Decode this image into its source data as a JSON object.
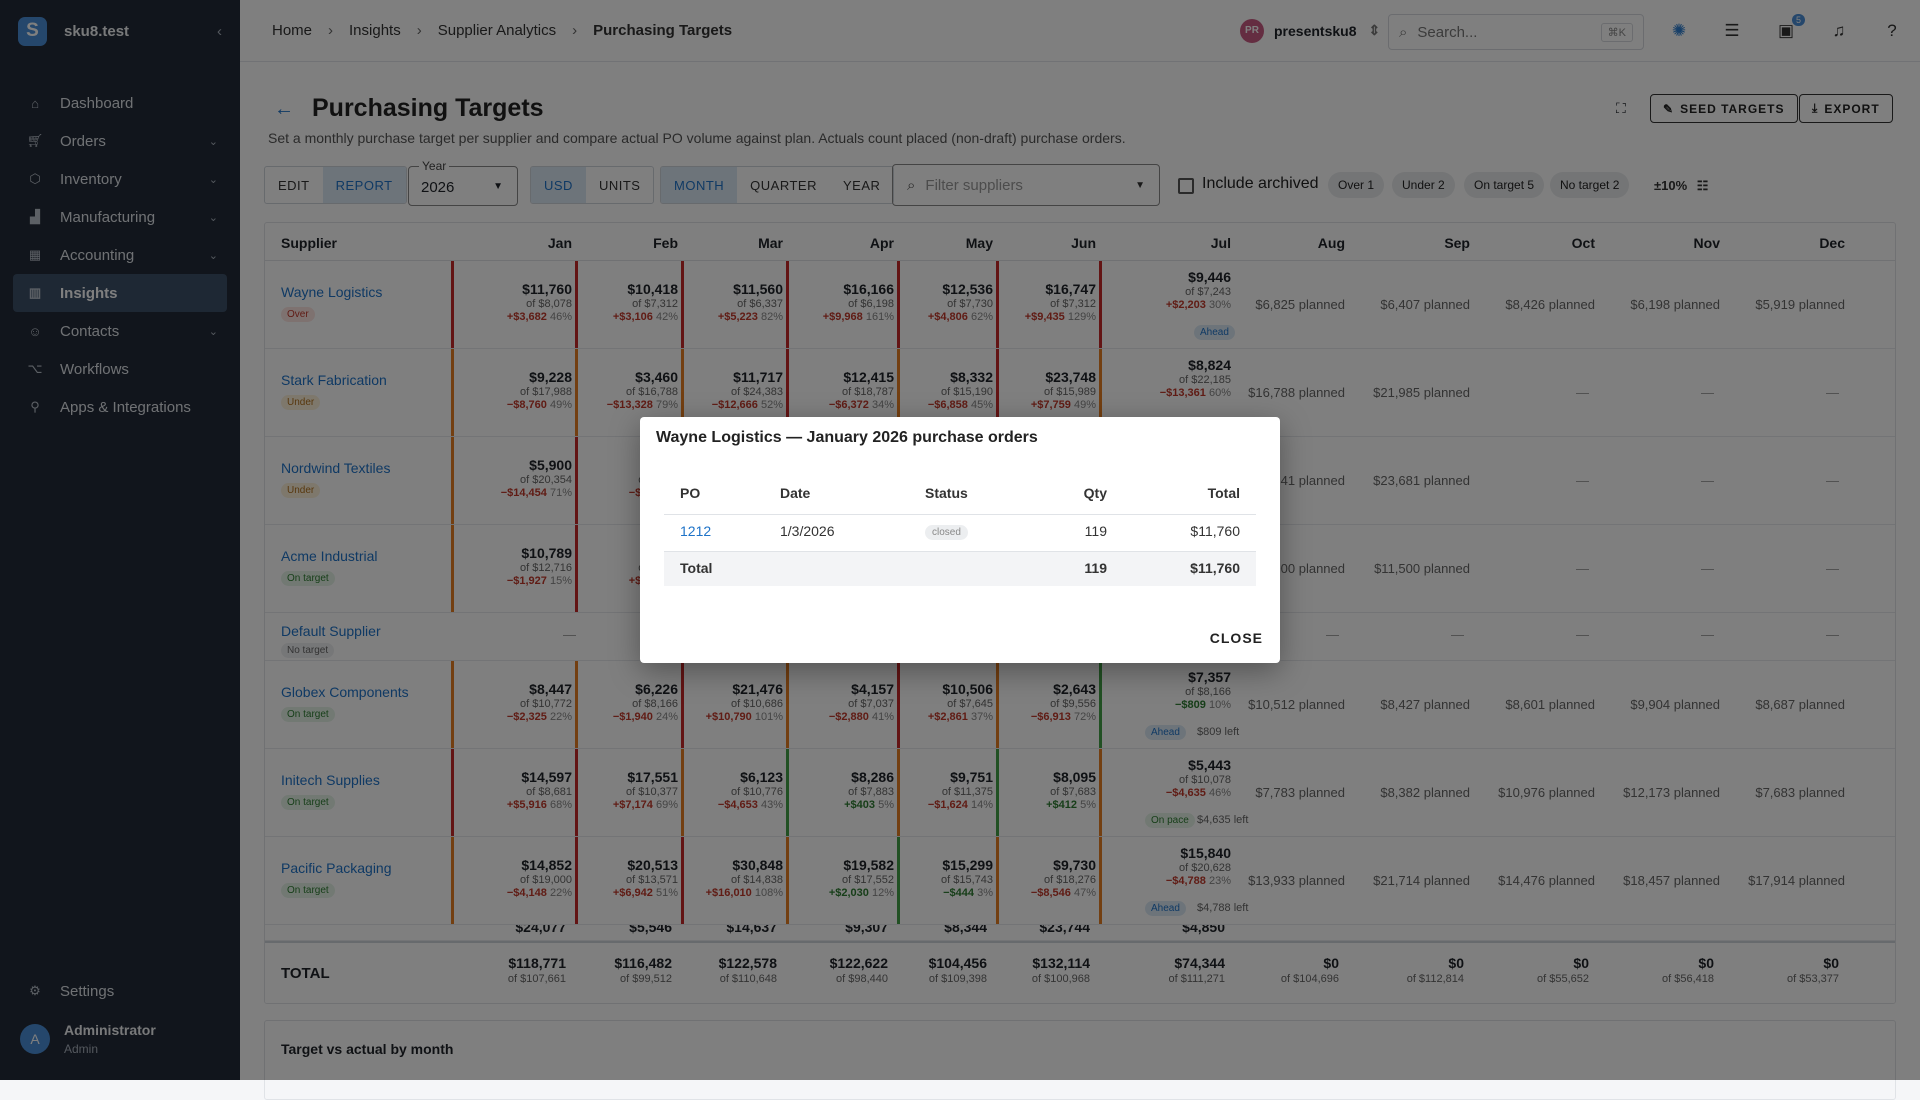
{
  "app": {
    "org": "sku8.test",
    "logo": "S"
  },
  "nav": [
    {
      "label": "Dashboard",
      "icon": "home-icon"
    },
    {
      "label": "Orders",
      "icon": "cart-icon"
    },
    {
      "label": "Inventory",
      "icon": "box-icon"
    },
    {
      "label": "Manufacturing",
      "icon": "factory-icon"
    },
    {
      "label": "Accounting",
      "icon": "calculator-icon"
    },
    {
      "label": "Insights",
      "icon": "chart-icon"
    },
    {
      "label": "Contacts",
      "icon": "people-icon"
    },
    {
      "label": "Workflows",
      "icon": "workflow-icon"
    },
    {
      "label": "Apps & Integrations",
      "icon": "plug-icon"
    }
  ],
  "settings": "Settings",
  "user": {
    "initial": "A",
    "name": "Administrator",
    "role": "Admin"
  },
  "breadcrumb": [
    "Home",
    "Insights",
    "Supplier Analytics",
    "Purchasing Targets"
  ],
  "account": {
    "initials": "PR",
    "name": "presentsku8"
  },
  "search": {
    "placeholder": "Search...",
    "shortcut": "⌘K"
  },
  "notifications_count": "5",
  "page": {
    "title": "Purchasing Targets",
    "subtitle": "Set a monthly purchase target per supplier and compare actual PO volume against plan. Actuals count placed (non-draft) purchase orders.",
    "seed": "SEED TARGETS",
    "export": "EXPORT"
  },
  "controls": {
    "edit": "EDIT",
    "report": "REPORT",
    "year_label": "Year",
    "year": "2026",
    "usd": "USD",
    "units": "UNITS",
    "month": "MONTH",
    "quarter": "QUARTER",
    "year_btn": "YEAR",
    "filter_placeholder": "Filter suppliers",
    "include_archived": "Include archived",
    "chips": [
      "Over 1",
      "Under 2",
      "On target 5",
      "No target 2"
    ],
    "tolerance": "±10%"
  },
  "table": {
    "header_supplier": "Supplier",
    "months": [
      "Jan",
      "Feb",
      "Mar",
      "Apr",
      "May",
      "Jun",
      "Jul",
      "Aug",
      "Sep",
      "Oct",
      "Nov",
      "Dec"
    ],
    "rows": [
      {
        "name": "Wayne Logistics",
        "tag": "Over",
        "cells": [
          [
            "$11,760",
            "of $8,078",
            "+$3,682",
            "46%"
          ],
          [
            "$10,418",
            "of $7,312",
            "+$3,106",
            "42%"
          ],
          [
            "$11,560",
            "of $6,337",
            "+$5,223",
            "82%"
          ],
          [
            "$16,166",
            "of $6,198",
            "+$9,968",
            "161%"
          ],
          [
            "$12,536",
            "of $7,730",
            "+$4,806",
            "62%"
          ],
          [
            "$16,747",
            "of $7,312",
            "+$9,435",
            "129%"
          ],
          [
            "$9,446",
            "of $7,243",
            "+$2,203",
            "30%"
          ]
        ],
        "plans": [
          "$6,825 planned",
          "$6,407 planned",
          "$8,426 planned",
          "$6,198 planned",
          "$5,919 planned"
        ],
        "pace": "Ahead"
      },
      {
        "name": "Stark Fabrication",
        "tag": "Under",
        "cells": [
          [
            "$9,228",
            "of $17,988",
            "−$8,760",
            "49%"
          ],
          [
            "$3,460",
            "of $16,788",
            "−$13,328",
            "79%"
          ],
          [
            "$11,717",
            "of $24,383",
            "−$12,666",
            "52%"
          ],
          [
            "$12,415",
            "of $18,787",
            "−$6,372",
            "34%"
          ],
          [
            "$8,332",
            "of $15,190",
            "−$6,858",
            "45%"
          ],
          [
            "$23,748",
            "of $15,989",
            "+$7,759",
            "49%"
          ],
          [
            "$8,824",
            "of $22,185",
            "−$13,361",
            "60%"
          ]
        ],
        "plans": [
          "$16,788 planned",
          "$21,985 planned",
          "—",
          "—",
          "—"
        ]
      },
      {
        "name": "Nordwind Textiles",
        "tag": "Under",
        "cells": [
          [
            "$5,900",
            "of $20,354",
            "−$14,454",
            "71%"
          ],
          [
            "$15,6",
            "of $20,9",
            "−$5,283",
            "2"
          ]
        ],
        "plans": [
          "941 planned",
          "$23,681 planned",
          "—",
          "—",
          "—"
        ]
      },
      {
        "name": "Acme Industrial",
        "tag": "On target",
        "cells": [
          [
            "$10,789",
            "of $12,716",
            "−$1,927",
            "15%"
          ],
          [
            "$13,8",
            "of $10,9",
            "+$2,854",
            "2"
          ]
        ],
        "plans": [
          "000 planned",
          "$11,500 planned",
          "—",
          "—",
          "—"
        ]
      },
      {
        "name": "Default Supplier",
        "tag": "No target",
        "plans": [
          "—",
          "—",
          "—",
          "—",
          "—"
        ]
      },
      {
        "name": "Globex Components",
        "tag": "On target",
        "cells": [
          [
            "$8,447",
            "of $10,772",
            "−$2,325",
            "22%"
          ],
          [
            "$6,226",
            "of $8,166",
            "−$1,940",
            "24%"
          ],
          [
            "$21,476",
            "of $10,686",
            "+$10,790",
            "101%"
          ],
          [
            "$4,157",
            "of $7,037",
            "−$2,880",
            "41%"
          ],
          [
            "$10,506",
            "of $7,645",
            "+$2,861",
            "37%"
          ],
          [
            "$2,643",
            "of $9,556",
            "−$6,913",
            "72%"
          ],
          [
            "$7,357",
            "of $8,166",
            "−$809",
            "10%"
          ]
        ],
        "plans": [
          "$10,512 planned",
          "$8,427 planned",
          "$8,601 planned",
          "$9,904 planned",
          "$8,687 planned"
        ],
        "pace": "Ahead",
        "left": "$809 left"
      },
      {
        "name": "Initech Supplies",
        "tag": "On target",
        "cells": [
          [
            "$14,597",
            "of $8,681",
            "+$5,916",
            "68%"
          ],
          [
            "$17,551",
            "of $10,377",
            "+$7,174",
            "69%"
          ],
          [
            "$6,123",
            "of $10,776",
            "−$4,653",
            "43%"
          ],
          [
            "$8,286",
            "of $7,883",
            "+$403",
            "5%"
          ],
          [
            "$9,751",
            "of $11,375",
            "−$1,624",
            "14%"
          ],
          [
            "$8,095",
            "of $7,683",
            "+$412",
            "5%"
          ],
          [
            "$5,443",
            "of $10,078",
            "−$4,635",
            "46%"
          ]
        ],
        "plans": [
          "$7,783 planned",
          "$8,382 planned",
          "$10,976 planned",
          "$12,173 planned",
          "$7,683 planned"
        ],
        "pace": "On pace",
        "left": "$4,635 left"
      },
      {
        "name": "Pacific Packaging",
        "tag": "On target",
        "cells": [
          [
            "$14,852",
            "of $19,000",
            "−$4,148",
            "22%"
          ],
          [
            "$20,513",
            "of $13,571",
            "+$6,942",
            "51%"
          ],
          [
            "$30,848",
            "of $14,838",
            "+$16,010",
            "108%"
          ],
          [
            "$19,582",
            "of $17,552",
            "+$2,030",
            "12%"
          ],
          [
            "$15,299",
            "of $15,743",
            "−$444",
            "3%"
          ],
          [
            "$9,730",
            "of $18,276",
            "−$8,546",
            "47%"
          ],
          [
            "$15,840",
            "of $20,628",
            "−$4,788",
            "23%"
          ]
        ],
        "plans": [
          "$13,933 planned",
          "$21,714 planned",
          "$14,476 planned",
          "$18,457 planned",
          "$17,914 planned"
        ],
        "pace": "Ahead",
        "left": "$4,788 left"
      }
    ],
    "partial_row": [
      "$24,077",
      "$5,546",
      "$14,637",
      "$9,307",
      "$8,344",
      "$23,744",
      "$4,850"
    ],
    "total_label": "TOTAL",
    "totals": [
      [
        "$118,771",
        "of $107,661"
      ],
      [
        "$116,482",
        "of $99,512"
      ],
      [
        "$122,578",
        "of $110,648"
      ],
      [
        "$122,622",
        "of $98,440"
      ],
      [
        "$104,456",
        "of $109,398"
      ],
      [
        "$132,114",
        "of $100,968"
      ],
      [
        "$74,344",
        "of $111,271"
      ],
      [
        "$0",
        "of $104,696"
      ],
      [
        "$0",
        "of $112,814"
      ],
      [
        "$0",
        "of $55,652"
      ],
      [
        "$0",
        "of $56,418"
      ],
      [
        "$0",
        "of $53,377"
      ]
    ]
  },
  "chart_card": {
    "title": "Target vs actual by month"
  },
  "modal": {
    "title": "Wayne Logistics — January 2026 purchase orders",
    "headers": [
      "PO",
      "Date",
      "Status",
      "Qty",
      "Total"
    ],
    "row": {
      "po": "1212",
      "date": "1/3/2026",
      "status": "closed",
      "qty": "119",
      "total": "$11,760"
    },
    "total_label": "Total",
    "total_qty": "119",
    "total_amount": "$11,760",
    "close": "CLOSE"
  }
}
